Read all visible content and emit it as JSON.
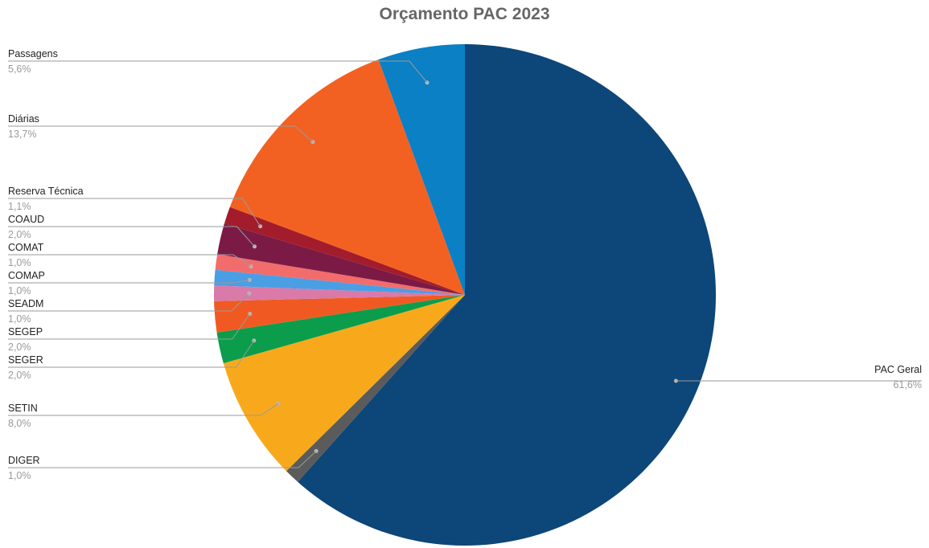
{
  "chart_data": {
    "type": "pie",
    "title": "Orçamento PAC 2023",
    "slices": [
      {
        "label": "PAC Geral",
        "value": 61.6,
        "value_label": "61,6%",
        "color": "#0d4678"
      },
      {
        "label": "DIGER",
        "value": 1.0,
        "value_label": "1,0%",
        "color": "#5b5b5b"
      },
      {
        "label": "SETIN",
        "value": 8.0,
        "value_label": "8,0%",
        "color": "#f8a91b"
      },
      {
        "label": "SEGER",
        "value": 2.0,
        "value_label": "2,0%",
        "color": "#0b9d4b"
      },
      {
        "label": "SEGEP",
        "value": 2.0,
        "value_label": "2,0%",
        "color": "#f05a22"
      },
      {
        "label": "SEADM",
        "value": 1.0,
        "value_label": "1,0%",
        "color": "#d97aa8"
      },
      {
        "label": "COMAP",
        "value": 1.0,
        "value_label": "1,0%",
        "color": "#4a9ee4"
      },
      {
        "label": "COMAT",
        "value": 1.0,
        "value_label": "1,0%",
        "color": "#f26c6c"
      },
      {
        "label": "COAUD",
        "value": 2.0,
        "value_label": "2,0%",
        "color": "#7b1b45"
      },
      {
        "label": "Reserva Técnica",
        "value": 1.1,
        "value_label": "1,1%",
        "color": "#a31c2b"
      },
      {
        "label": "Diárias",
        "value": 13.7,
        "value_label": "13,7%",
        "color": "#f26122"
      },
      {
        "label": "Passagens",
        "value": 5.6,
        "value_label": "5,6%",
        "color": "#0b80c4"
      }
    ],
    "legend": "none",
    "label_style": "outside labels with leader lines"
  }
}
